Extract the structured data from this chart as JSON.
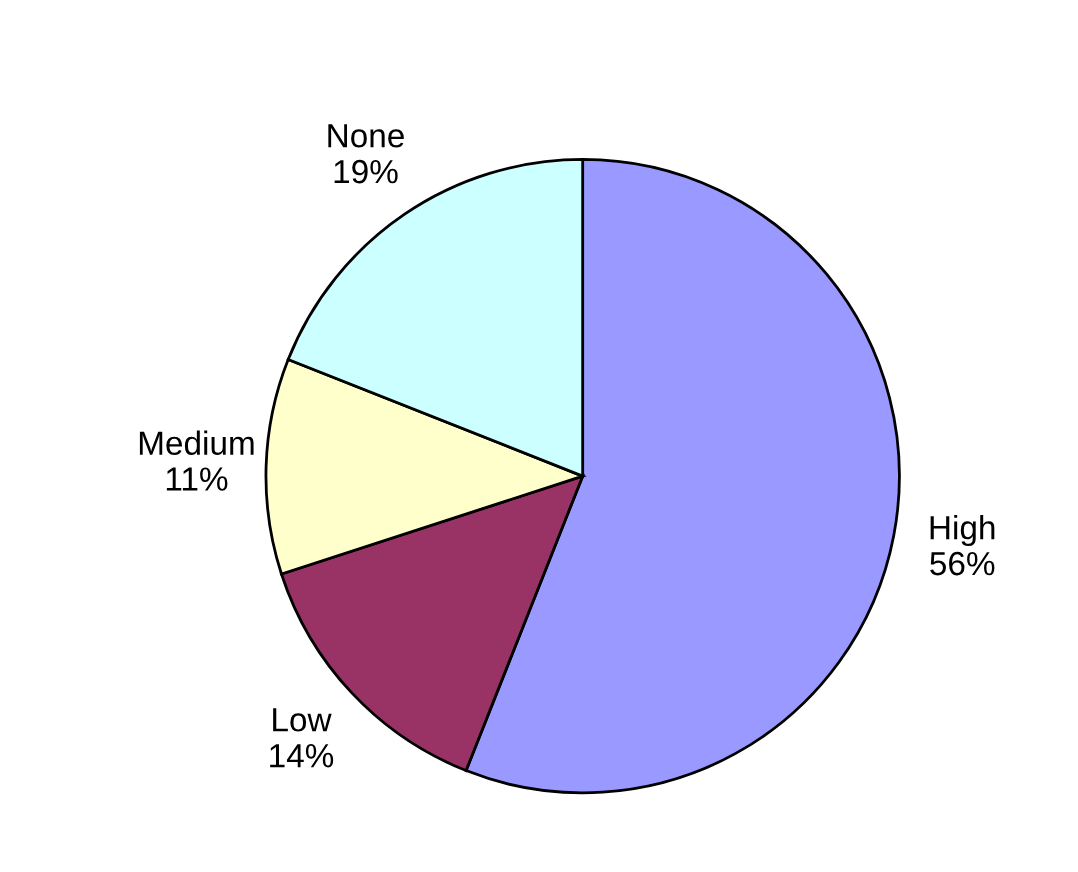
{
  "chart_data": {
    "type": "pie",
    "categories": [
      "High",
      "Low",
      "Medium",
      "None"
    ],
    "values": [
      56,
      14,
      11,
      19
    ],
    "colors": [
      "#9999ff",
      "#993366",
      "#ffffcc",
      "#ccffff"
    ],
    "value_labels": [
      "56%",
      "14%",
      "11%",
      "19%"
    ]
  }
}
